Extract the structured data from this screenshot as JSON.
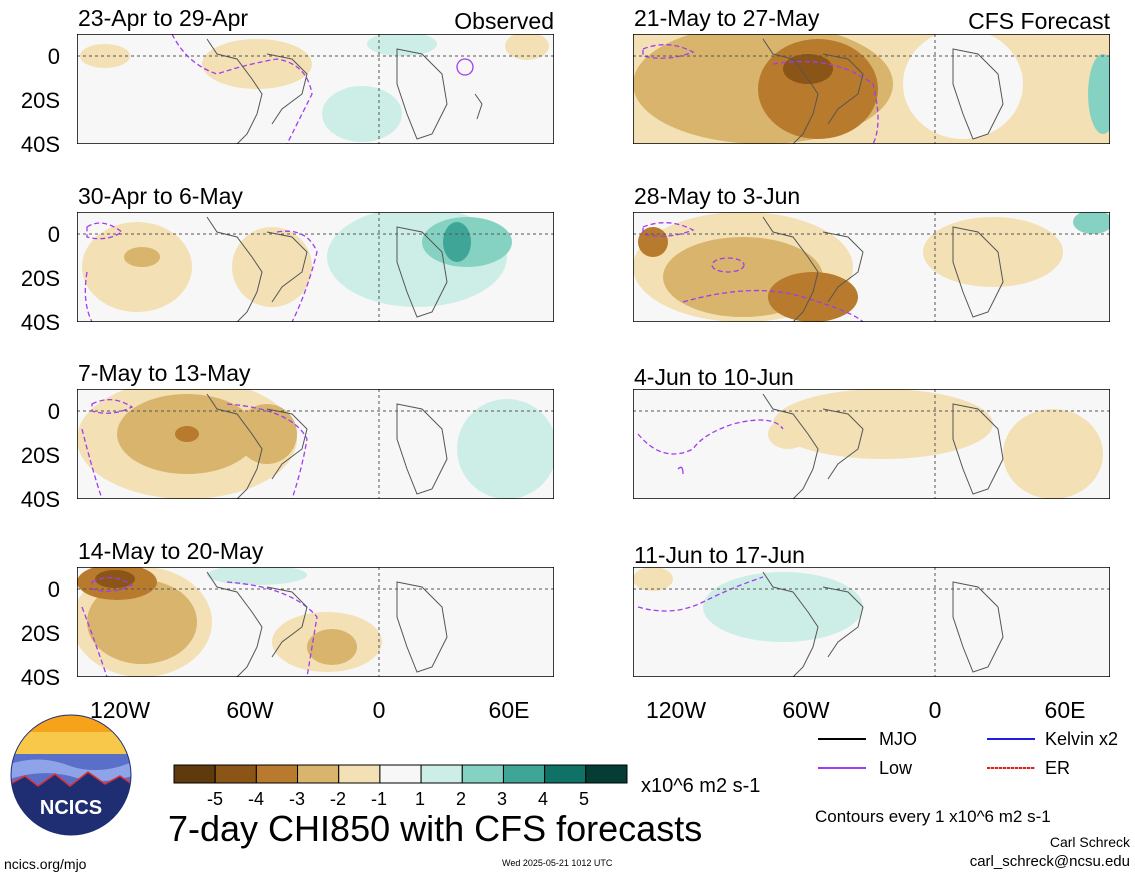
{
  "panels": [
    {
      "title": "23-Apr to 29-Apr",
      "tag": "Observed"
    },
    {
      "title": "30-Apr to 6-May",
      "tag": ""
    },
    {
      "title": "7-May to 13-May",
      "tag": ""
    },
    {
      "title": "14-May to 20-May",
      "tag": ""
    },
    {
      "title": "21-May to 27-May",
      "tag": "CFS Forecast"
    },
    {
      "title": "28-May to 3-Jun",
      "tag": ""
    },
    {
      "title": "4-Jun to 10-Jun",
      "tag": ""
    },
    {
      "title": "11-Jun to 17-Jun",
      "tag": ""
    }
  ],
  "y_ticks": [
    "0",
    "20S",
    "40S"
  ],
  "x_ticks": [
    "120W",
    "60W",
    "0",
    "60E"
  ],
  "legend": {
    "mjo": "MJO",
    "kelvin": "Kelvin x2",
    "low": "Low",
    "er": "ER",
    "colors": {
      "mjo": "#000000",
      "kelvin": "#1f1fe0",
      "low": "#a23cf0",
      "er": "#e02020"
    }
  },
  "colorbar": {
    "labels": [
      "-5",
      "-4",
      "-3",
      "-2",
      "-1",
      "1",
      "2",
      "3",
      "4",
      "5"
    ],
    "units": "x10^6 m2 s-1",
    "colors": [
      "#5e3a0c",
      "#8a5516",
      "#b87a2c",
      "#d8b46c",
      "#f3e0b4",
      "#f7f7f7",
      "#cdeee6",
      "#86d2c2",
      "#3fa596",
      "#0e7266",
      "#053d34"
    ]
  },
  "main_title": "7-day CHI850 with CFS forecasts",
  "contours_note": "Contours every 1 x10^6 m2 s-1",
  "author": "Carl Schreck",
  "email": "carl_schreck@ncsu.edu",
  "url": "ncics.org/mjo",
  "timestamp": "Wed 2025-05-21 1012 UTC",
  "logo_text": "NCICS"
}
